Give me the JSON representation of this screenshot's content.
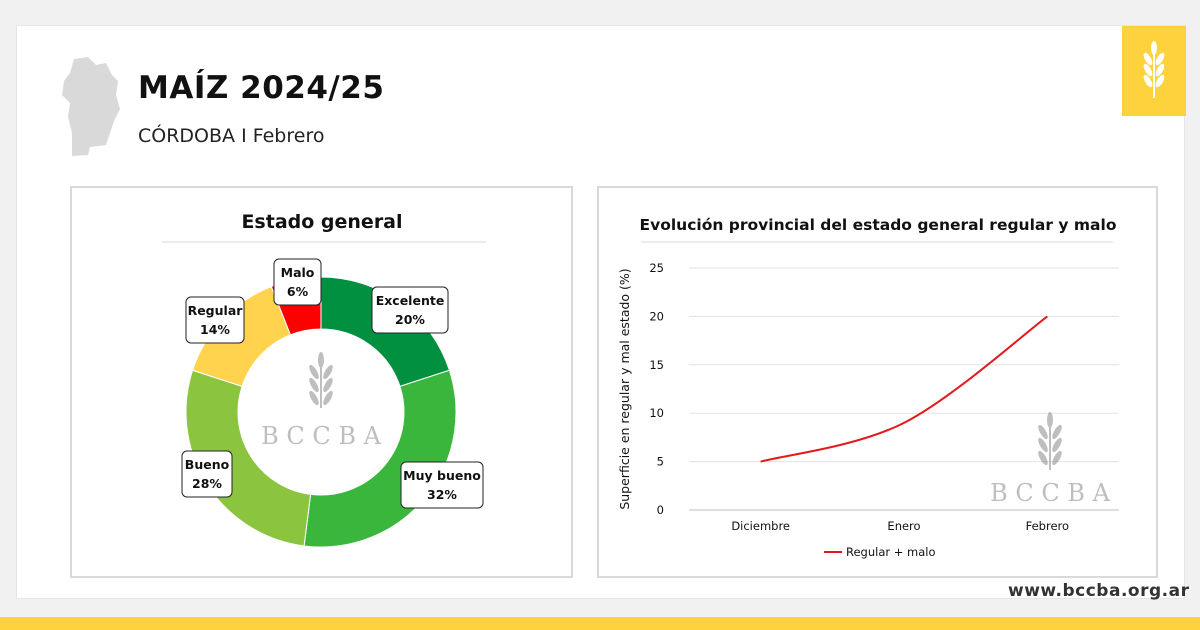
{
  "header": {
    "title": "MAÍZ 2024/25",
    "subtitle": "CÓRDOBA I Febrero"
  },
  "footer": {
    "website": "www.bccba.org.ar"
  },
  "watermark": {
    "text": "B C C B A",
    "icon": "wheat-icon"
  },
  "colors": {
    "accent_yellow": "#fdd23d",
    "excelente": "#00903f",
    "muy_bueno": "#3ab63d",
    "bueno": "#8bc53f",
    "regular": "#ffd34e",
    "malo": "#fe0000",
    "line": "#e31a1c"
  },
  "chart_data": [
    {
      "type": "pie",
      "title": "Estado general",
      "donut": true,
      "slices": [
        {
          "label": "Excelente",
          "value": 20,
          "value_label": "20%"
        },
        {
          "label": "Muy bueno",
          "value": 32,
          "value_label": "32%"
        },
        {
          "label": "Bueno",
          "value": 28,
          "value_label": "28%"
        },
        {
          "label": "Regular",
          "value": 14,
          "value_label": "14%"
        },
        {
          "label": "Malo",
          "value": 6,
          "value_label": "6%"
        }
      ]
    },
    {
      "type": "line",
      "title": "Evolución provincial del estado general regular y malo",
      "ylabel": "Superficie en regular y mal estado (%)",
      "xlabel": "",
      "categories": [
        "Diciembre",
        "Enero",
        "Febrero"
      ],
      "series": [
        {
          "name": "Regular + malo",
          "values": [
            5,
            9,
            20
          ]
        }
      ],
      "ylim": [
        0,
        25
      ],
      "yticks": [
        0,
        5,
        10,
        15,
        20,
        25
      ],
      "grid": true,
      "legend": "bottom"
    }
  ]
}
